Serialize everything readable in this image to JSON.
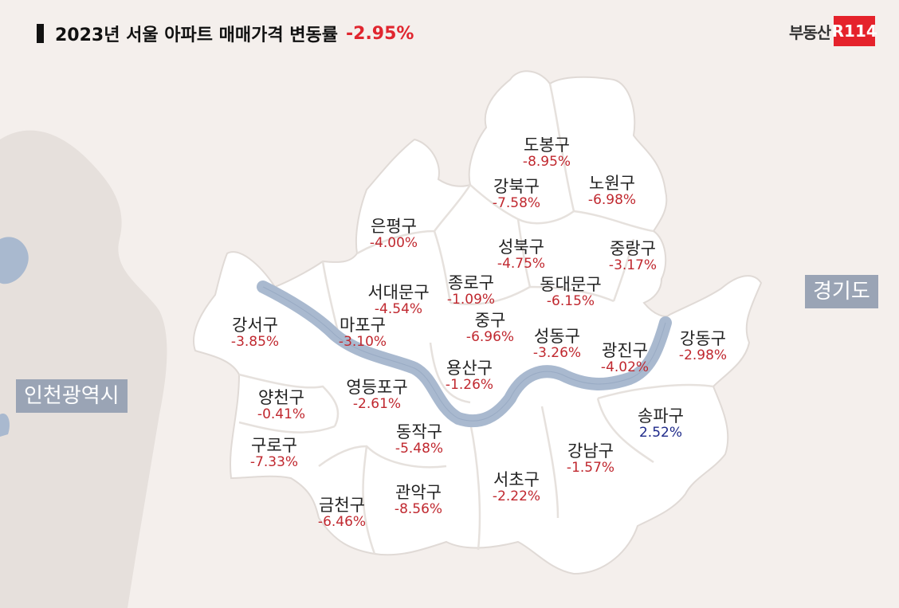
{
  "title": {
    "text": "2023년 서울 아파트 매매가격 변동률",
    "value": "-2.95%"
  },
  "logo": {
    "text": "부동산",
    "badge": "R114"
  },
  "outside_labels": {
    "gyeonggi": "경기도",
    "incheon": "인천광역시"
  },
  "colors": {
    "background": "#f4efec",
    "land_outside": "#e6e0dc",
    "seoul_fill": "#ffffff",
    "river": "#a9b9cf",
    "negative": "#c0282f",
    "positive": "#1f2a8a",
    "title_accent": "#e0262f"
  },
  "districts": [
    {
      "id": "dobong",
      "name": "도봉구",
      "rate": "-8.95%"
    },
    {
      "id": "gangbuk",
      "name": "강북구",
      "rate": "-7.58%"
    },
    {
      "id": "nowon",
      "name": "노원구",
      "rate": "-6.98%"
    },
    {
      "id": "eunpyeong",
      "name": "은평구",
      "rate": "-4.00%"
    },
    {
      "id": "seongbuk",
      "name": "성북구",
      "rate": "-4.75%"
    },
    {
      "id": "jungnang",
      "name": "중랑구",
      "rate": "-3.17%"
    },
    {
      "id": "seodaemun",
      "name": "서대문구",
      "rate": "-4.54%"
    },
    {
      "id": "jongno",
      "name": "종로구",
      "rate": "-1.09%"
    },
    {
      "id": "dongdaemun",
      "name": "동대문구",
      "rate": "-6.15%"
    },
    {
      "id": "gangseo",
      "name": "강서구",
      "rate": "-3.85%"
    },
    {
      "id": "mapo",
      "name": "마포구",
      "rate": "-3.10%"
    },
    {
      "id": "jung",
      "name": "중구",
      "rate": "-6.96%"
    },
    {
      "id": "seongdong",
      "name": "성동구",
      "rate": "-3.26%"
    },
    {
      "id": "gwangjin",
      "name": "광진구",
      "rate": "-4.02%"
    },
    {
      "id": "gangdong",
      "name": "강동구",
      "rate": "-2.98%"
    },
    {
      "id": "yangcheon",
      "name": "양천구",
      "rate": "-0.41%"
    },
    {
      "id": "yeongdeungpo",
      "name": "영등포구",
      "rate": "-2.61%"
    },
    {
      "id": "yongsan",
      "name": "용산구",
      "rate": "-1.26%"
    },
    {
      "id": "songpa",
      "name": "송파구",
      "rate": "2.52%"
    },
    {
      "id": "guro",
      "name": "구로구",
      "rate": "-7.33%"
    },
    {
      "id": "dongjak",
      "name": "동작구",
      "rate": "-5.48%"
    },
    {
      "id": "gangnam",
      "name": "강남구",
      "rate": "-1.57%"
    },
    {
      "id": "seocho",
      "name": "서초구",
      "rate": "-2.22%"
    },
    {
      "id": "gwanak",
      "name": "관악구",
      "rate": "-8.56%"
    },
    {
      "id": "geumcheon",
      "name": "금천구",
      "rate": "-6.46%"
    }
  ]
}
